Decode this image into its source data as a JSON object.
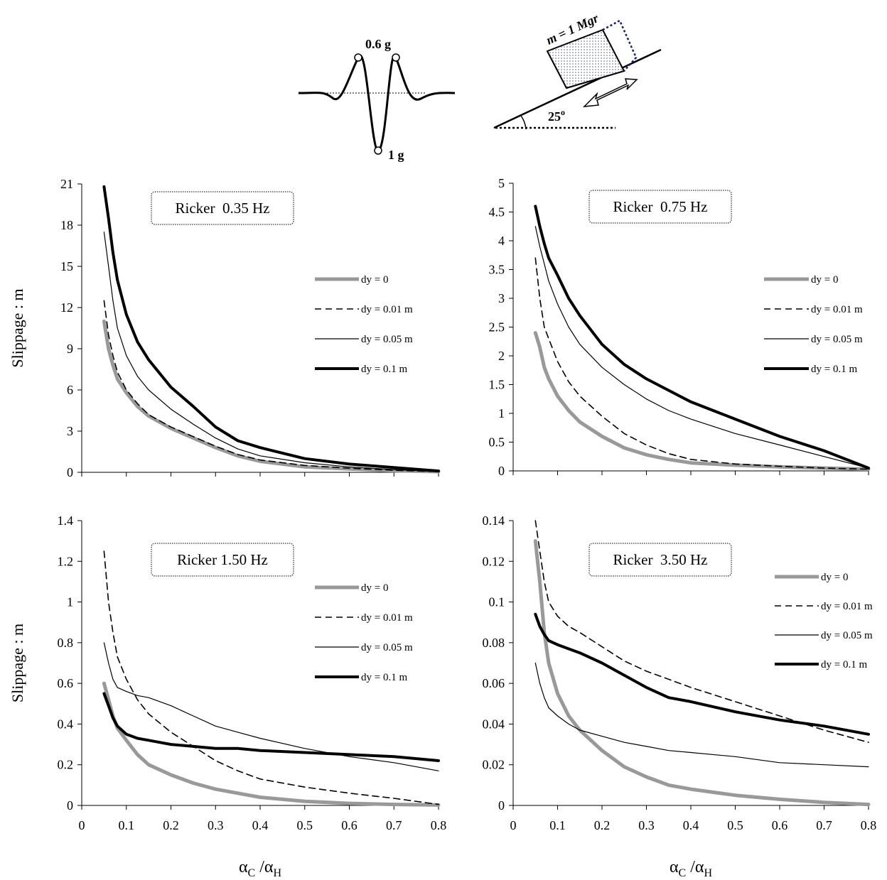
{
  "diagram": {
    "peak_label": "0.6 g",
    "trough_label": "1 g",
    "mass_label": "m = 1 Mgr",
    "angle_value": "25",
    "angle_unit": "o"
  },
  "chart_data": [
    {
      "type": "line",
      "title": "Ricker  0.35 Hz",
      "ylabel": "Slippage : m",
      "xlabel": null,
      "xtick_labels": false,
      "x": [
        0.05,
        0.06,
        0.07,
        0.08,
        0.1,
        0.125,
        0.15,
        0.2,
        0.25,
        0.3,
        0.35,
        0.4,
        0.5,
        0.6,
        0.7,
        0.8
      ],
      "xlim": [
        0,
        0.8
      ],
      "xticks": [
        0,
        0.1,
        0.2,
        0.3,
        0.4,
        0.5,
        0.6,
        0.7,
        0.8
      ],
      "ylim": [
        0,
        21
      ],
      "yticks": [
        0,
        3,
        6,
        9,
        12,
        15,
        18,
        21
      ],
      "series": [
        {
          "name": "dy = 0",
          "color": "#999999",
          "width": 5,
          "dash": false,
          "values": [
            11,
            9,
            7.8,
            6.8,
            5.8,
            4.8,
            4.1,
            3.2,
            2.5,
            1.8,
            1.2,
            0.8,
            0.4,
            0.25,
            0.12,
            0.05
          ]
        },
        {
          "name": "dy = 0.01 m",
          "color": "#000000",
          "width": 1.6,
          "dash": true,
          "values": [
            12.5,
            10,
            8.5,
            7.3,
            6,
            5,
            4.2,
            3.3,
            2.6,
            1.9,
            1.3,
            0.9,
            0.5,
            0.3,
            0.15,
            0.05
          ]
        },
        {
          "name": "dy = 0.05 m",
          "color": "#000000",
          "width": 1.2,
          "dash": false,
          "values": [
            17.5,
            15,
            12.5,
            10.5,
            8.5,
            7,
            6,
            4.6,
            3.5,
            2.5,
            1.7,
            1.2,
            0.7,
            0.4,
            0.2,
            0.05
          ]
        },
        {
          "name": "dy = 0.1 m",
          "color": "#000000",
          "width": 4,
          "dash": false,
          "values": [
            20.8,
            18.5,
            16,
            14,
            11.5,
            9.5,
            8.2,
            6.2,
            4.8,
            3.3,
            2.3,
            1.8,
            1,
            0.6,
            0.35,
            0.1
          ]
        }
      ]
    },
    {
      "type": "line",
      "title": "Ricker  0.75 Hz",
      "ylabel": null,
      "xlabel": null,
      "xtick_labels": false,
      "x": [
        0.05,
        0.06,
        0.07,
        0.08,
        0.1,
        0.125,
        0.15,
        0.2,
        0.25,
        0.3,
        0.35,
        0.4,
        0.5,
        0.6,
        0.7,
        0.8
      ],
      "xlim": [
        0,
        0.8
      ],
      "xticks": [
        0,
        0.1,
        0.2,
        0.3,
        0.4,
        0.5,
        0.6,
        0.7,
        0.8
      ],
      "ylim": [
        0,
        5
      ],
      "yticks": [
        0,
        0.5,
        1,
        1.5,
        2,
        2.5,
        3,
        3.5,
        4,
        4.5,
        5
      ],
      "series": [
        {
          "name": "dy = 0",
          "color": "#999999",
          "width": 5,
          "dash": false,
          "values": [
            2.4,
            2.15,
            1.8,
            1.6,
            1.3,
            1.05,
            0.85,
            0.6,
            0.4,
            0.28,
            0.2,
            0.14,
            0.1,
            0.07,
            0.05,
            0.03
          ]
        },
        {
          "name": "dy = 0.01 m",
          "color": "#000000",
          "width": 1.6,
          "dash": true,
          "values": [
            3.7,
            3,
            2.5,
            2.3,
            1.9,
            1.55,
            1.3,
            0.95,
            0.65,
            0.45,
            0.3,
            0.2,
            0.12,
            0.08,
            0.05,
            0.03
          ]
        },
        {
          "name": "dy = 0.05 m",
          "color": "#000000",
          "width": 1.2,
          "dash": false,
          "values": [
            4.25,
            3.9,
            3.6,
            3.3,
            2.9,
            2.5,
            2.2,
            1.8,
            1.5,
            1.25,
            1.05,
            0.9,
            0.65,
            0.45,
            0.25,
            0.05
          ]
        },
        {
          "name": "dy = 0.1 m",
          "color": "#000000",
          "width": 4,
          "dash": false,
          "values": [
            4.6,
            4.25,
            3.95,
            3.7,
            3.4,
            3,
            2.7,
            2.2,
            1.85,
            1.6,
            1.4,
            1.2,
            0.9,
            0.6,
            0.35,
            0.05
          ]
        }
      ]
    },
    {
      "type": "line",
      "title": "Ricker 1.50 Hz",
      "ylabel": "Slippage : m",
      "xlabel": [
        "α",
        "C",
        " /α",
        "H"
      ],
      "xtick_labels": true,
      "x": [
        0.05,
        0.06,
        0.07,
        0.08,
        0.1,
        0.125,
        0.15,
        0.2,
        0.25,
        0.3,
        0.35,
        0.4,
        0.5,
        0.6,
        0.7,
        0.8
      ],
      "xlim": [
        0,
        0.8
      ],
      "xticks": [
        0,
        0.1,
        0.2,
        0.3,
        0.4,
        0.5,
        0.6,
        0.7,
        0.8
      ],
      "ylim": [
        0,
        1.4
      ],
      "yticks": [
        0,
        0.2,
        0.4,
        0.6,
        0.8,
        1,
        1.2,
        1.4
      ],
      "series": [
        {
          "name": "dy = 0",
          "color": "#999999",
          "width": 5,
          "dash": false,
          "values": [
            0.6,
            0.52,
            0.44,
            0.38,
            0.32,
            0.25,
            0.2,
            0.15,
            0.11,
            0.08,
            0.06,
            0.04,
            0.02,
            0.01,
            0.005,
            0.002
          ]
        },
        {
          "name": "dy = 0.01 m",
          "color": "#000000",
          "width": 1.6,
          "dash": true,
          "values": [
            1.25,
            1,
            0.85,
            0.73,
            0.62,
            0.52,
            0.45,
            0.36,
            0.29,
            0.22,
            0.17,
            0.13,
            0.09,
            0.06,
            0.035,
            0.005
          ]
        },
        {
          "name": "dy = 0.05 m",
          "color": "#000000",
          "width": 1.2,
          "dash": false,
          "values": [
            0.8,
            0.7,
            0.62,
            0.58,
            0.56,
            0.54,
            0.53,
            0.49,
            0.44,
            0.39,
            0.36,
            0.33,
            0.28,
            0.24,
            0.21,
            0.17
          ]
        },
        {
          "name": "dy = 0.1 m",
          "color": "#000000",
          "width": 4,
          "dash": false,
          "values": [
            0.55,
            0.49,
            0.43,
            0.39,
            0.35,
            0.33,
            0.32,
            0.3,
            0.29,
            0.28,
            0.28,
            0.27,
            0.26,
            0.25,
            0.24,
            0.22
          ]
        }
      ]
    },
    {
      "type": "line",
      "title": "Ricker  3.50 Hz",
      "ylabel": null,
      "xlabel": [
        "α",
        "C",
        " /α",
        "H"
      ],
      "xtick_labels": true,
      "x": [
        0.05,
        0.06,
        0.07,
        0.08,
        0.1,
        0.125,
        0.15,
        0.2,
        0.25,
        0.3,
        0.35,
        0.4,
        0.5,
        0.6,
        0.7,
        0.8
      ],
      "xlim": [
        0,
        0.8
      ],
      "xticks": [
        0,
        0.1,
        0.2,
        0.3,
        0.4,
        0.5,
        0.6,
        0.7,
        0.8
      ],
      "ylim": [
        0,
        0.14
      ],
      "yticks": [
        0,
        0.02,
        0.04,
        0.06,
        0.08,
        0.1,
        0.12,
        0.14
      ],
      "series": [
        {
          "name": "dy = 0",
          "color": "#999999",
          "width": 5,
          "dash": false,
          "values": [
            0.13,
            0.11,
            0.085,
            0.07,
            0.055,
            0.044,
            0.037,
            0.027,
            0.019,
            0.014,
            0.01,
            0.008,
            0.005,
            0.003,
            0.0015,
            0.0005
          ]
        },
        {
          "name": "dy = 0.01 m",
          "color": "#000000",
          "width": 1.6,
          "dash": true,
          "values": [
            0.14,
            0.125,
            0.11,
            0.1,
            0.093,
            0.088,
            0.085,
            0.078,
            0.071,
            0.066,
            0.062,
            0.058,
            0.051,
            0.044,
            0.037,
            0.031
          ]
        },
        {
          "name": "dy = 0.05 m",
          "color": "#000000",
          "width": 1.2,
          "dash": false,
          "values": [
            0.07,
            0.06,
            0.053,
            0.048,
            0.044,
            0.04,
            0.037,
            0.034,
            0.031,
            0.029,
            0.027,
            0.026,
            0.024,
            0.021,
            0.02,
            0.019
          ]
        },
        {
          "name": "dy = 0.1 m",
          "color": "#000000",
          "width": 4,
          "dash": false,
          "values": [
            0.094,
            0.088,
            0.084,
            0.081,
            0.079,
            0.077,
            0.075,
            0.07,
            0.064,
            0.058,
            0.053,
            0.051,
            0.046,
            0.042,
            0.039,
            0.035
          ]
        }
      ]
    }
  ]
}
